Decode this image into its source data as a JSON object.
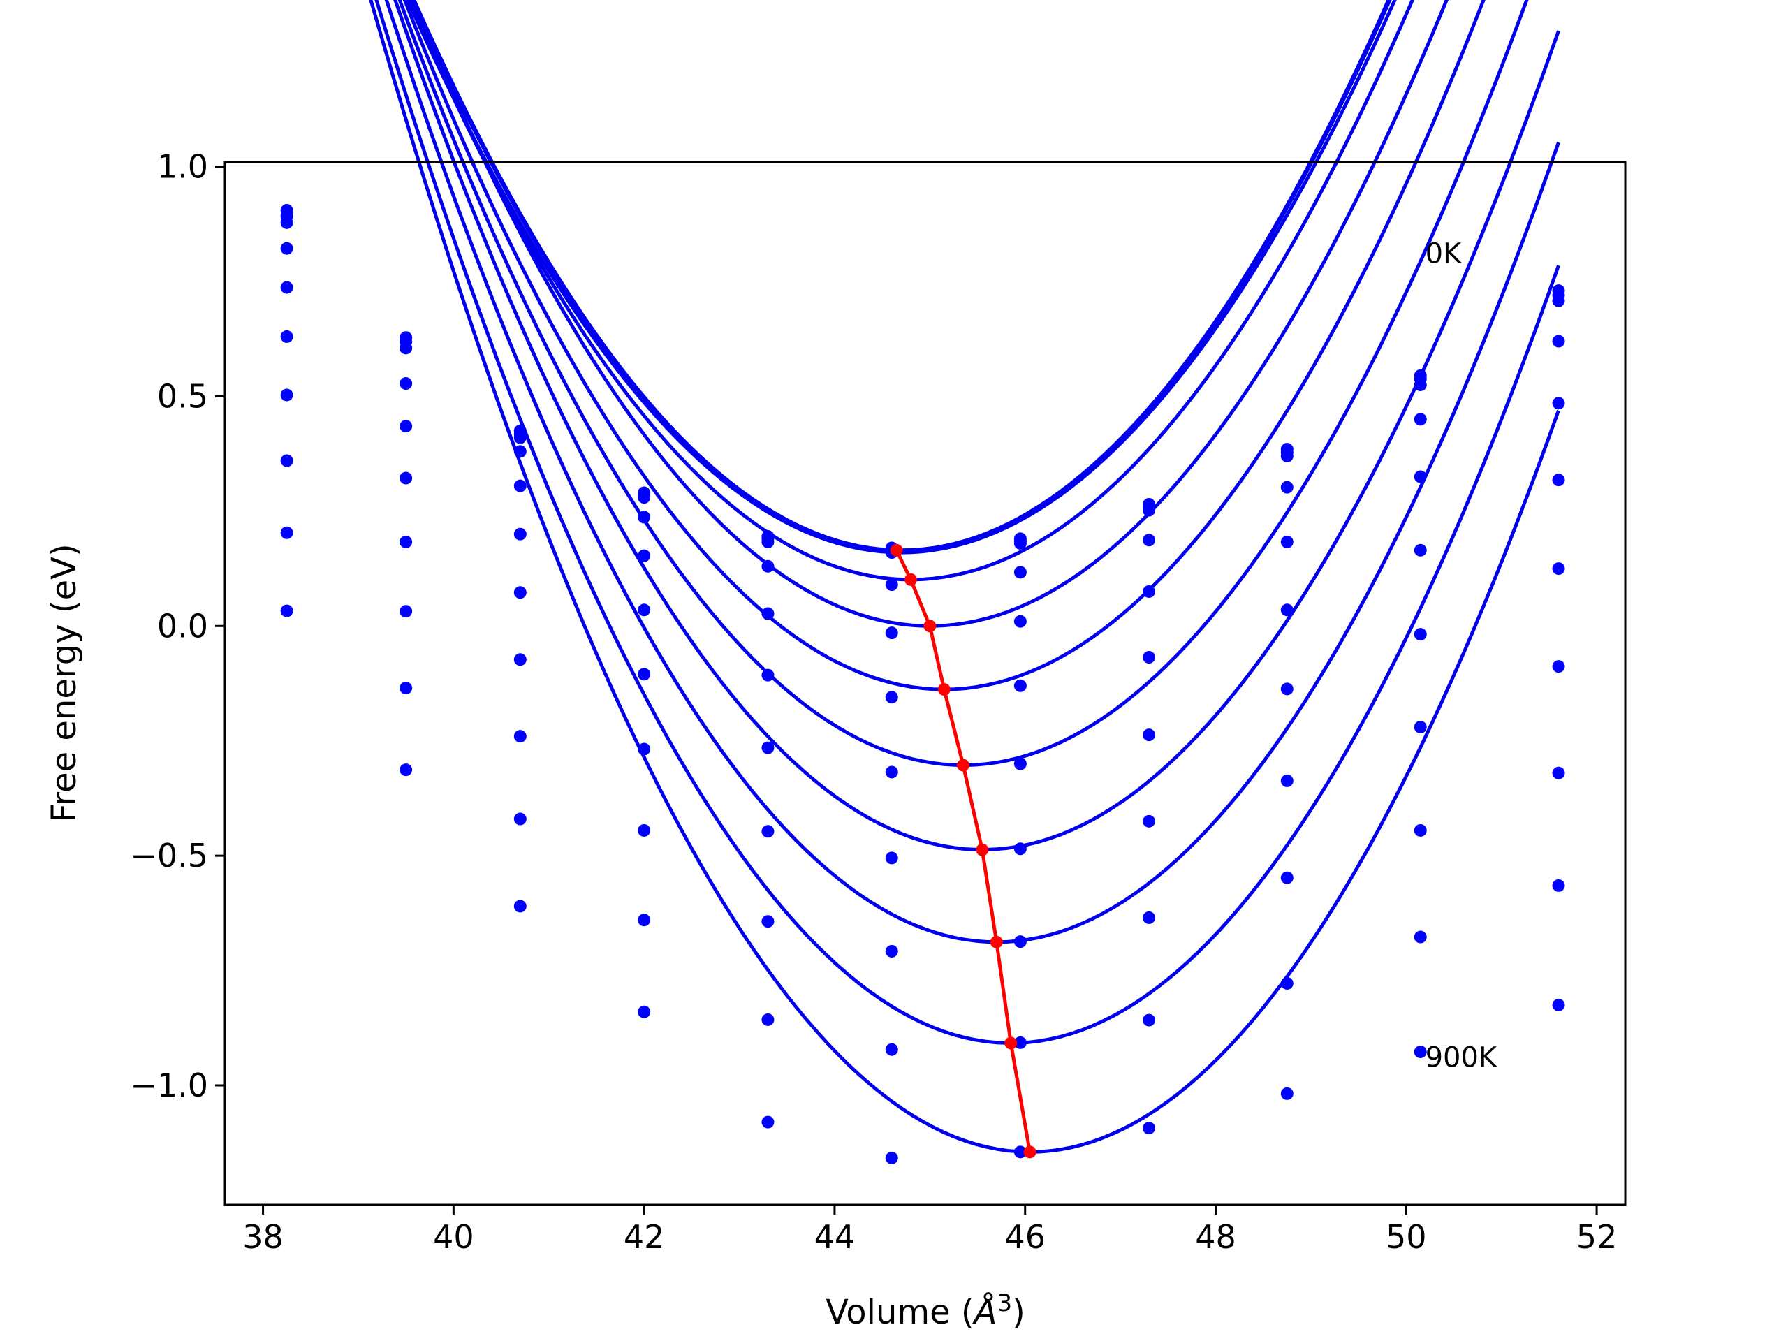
{
  "chart_data": {
    "type": "line",
    "xlabel": "Volume (",
    "xlabel_sym": "Å",
    "xlabel_sup": "3",
    "xlabel_end": ")",
    "ylabel": "Free energy (eV)",
    "xlim": [
      37.6,
      52.3
    ],
    "ylim": [
      -1.26,
      1.01
    ],
    "xticks": [
      38,
      40,
      42,
      44,
      46,
      48,
      50,
      52
    ],
    "xtick_labels": [
      "38",
      "40",
      "42",
      "44",
      "46",
      "48",
      "50",
      "52"
    ],
    "yticks": [
      1.0,
      0.5,
      0.0,
      -0.5,
      -1.0
    ],
    "ytick_labels": [
      "1.0",
      "0.5",
      "0.0",
      "−0.5",
      "−1.0"
    ],
    "annotations": [
      {
        "text": "0K",
        "x": 50.2,
        "y": 0.79
      },
      {
        "text": "900K",
        "x": 50.2,
        "y": -0.96
      }
    ],
    "fit_color": "#0000ee",
    "point_color": "#0000ff",
    "min_color": "#ff0000",
    "volumes": [
      38.25,
      39.5,
      40.7,
      42.0,
      43.3,
      44.6,
      45.95,
      47.3,
      48.75,
      50.15,
      51.6
    ],
    "series": [
      {
        "label": "0K",
        "x_min": 44.7,
        "e_min": 0.165,
        "curv": 0.0458,
        "points": [
          0.905,
          0.628,
          0.425,
          0.29,
          0.195,
          0.17,
          0.19,
          0.265,
          0.385,
          0.545,
          0.73
        ]
      },
      {
        "x_min": 44.7,
        "e_min": 0.163,
        "curv": 0.0456,
        "points": [
          0.893,
          0.619,
          0.418,
          0.285,
          0.19,
          0.165,
          0.185,
          0.258,
          0.378,
          0.538,
          0.72
        ]
      },
      {
        "x_min": 44.7,
        "e_min": 0.16,
        "curv": 0.0448,
        "points": [
          0.878,
          0.605,
          0.41,
          0.28,
          0.183,
          0.16,
          0.18,
          0.252,
          0.37,
          0.525,
          0.708
        ]
      },
      {
        "x_min": 44.8,
        "e_min": 0.101,
        "curv": 0.0455,
        "points": [
          0.822,
          0.528,
          0.38,
          0.237,
          0.13,
          0.09,
          0.117,
          0.187,
          0.302,
          0.45,
          0.62
        ]
      },
      {
        "x_min": 45.0,
        "e_min": 0.0,
        "curv": 0.0463,
        "points": [
          0.737,
          0.435,
          0.305,
          0.153,
          0.027,
          -0.015,
          0.01,
          0.075,
          0.183,
          0.325,
          0.485
        ]
      },
      {
        "x_min": 45.15,
        "e_min": -0.138,
        "curv": 0.0468,
        "points": [
          0.63,
          0.322,
          0.2,
          0.035,
          -0.107,
          -0.155,
          -0.13,
          -0.068,
          0.035,
          0.165,
          0.318
        ]
      },
      {
        "x_min": 45.35,
        "e_min": -0.303,
        "curv": 0.0476,
        "points": [
          0.503,
          0.183,
          0.073,
          -0.105,
          -0.265,
          -0.318,
          -0.3,
          -0.237,
          -0.137,
          -0.018,
          0.125
        ]
      },
      {
        "x_min": 45.55,
        "e_min": -0.487,
        "curv": 0.0487,
        "points": [
          0.36,
          0.032,
          -0.073,
          -0.268,
          -0.447,
          -0.505,
          -0.485,
          -0.425,
          -0.337,
          -0.22,
          -0.088
        ]
      },
      {
        "x_min": 45.7,
        "e_min": -0.688,
        "curv": 0.05,
        "points": [
          0.203,
          -0.135,
          -0.24,
          -0.445,
          -0.643,
          -0.708,
          -0.687,
          -0.635,
          -0.548,
          -0.445,
          -0.32
        ]
      },
      {
        "x_min": 45.85,
        "e_min": -0.908,
        "curv": 0.0512,
        "points": [
          0.033,
          -0.313,
          -0.42,
          -0.64,
          -0.857,
          -0.922,
          -0.907,
          -0.858,
          -0.778,
          -0.677,
          -0.565
        ]
      },
      {
        "label": "900K",
        "x_min": 46.05,
        "e_min": -1.145,
        "curv": 0.0524,
        "points": [
          null,
          null,
          -0.61,
          -0.84,
          -1.08,
          -1.158,
          -1.145,
          -1.093,
          -1.018,
          -0.927,
          -0.825
        ]
      }
    ],
    "minima": [
      {
        "x": 44.65,
        "y": 0.165
      },
      {
        "x": 44.8,
        "y": 0.101
      },
      {
        "x": 45.0,
        "y": 0.0
      },
      {
        "x": 45.15,
        "y": -0.138
      },
      {
        "x": 45.35,
        "y": -0.303
      },
      {
        "x": 45.55,
        "y": -0.487
      },
      {
        "x": 45.7,
        "y": -0.688
      },
      {
        "x": 45.85,
        "y": -0.908
      },
      {
        "x": 46.05,
        "y": -1.145
      }
    ]
  }
}
